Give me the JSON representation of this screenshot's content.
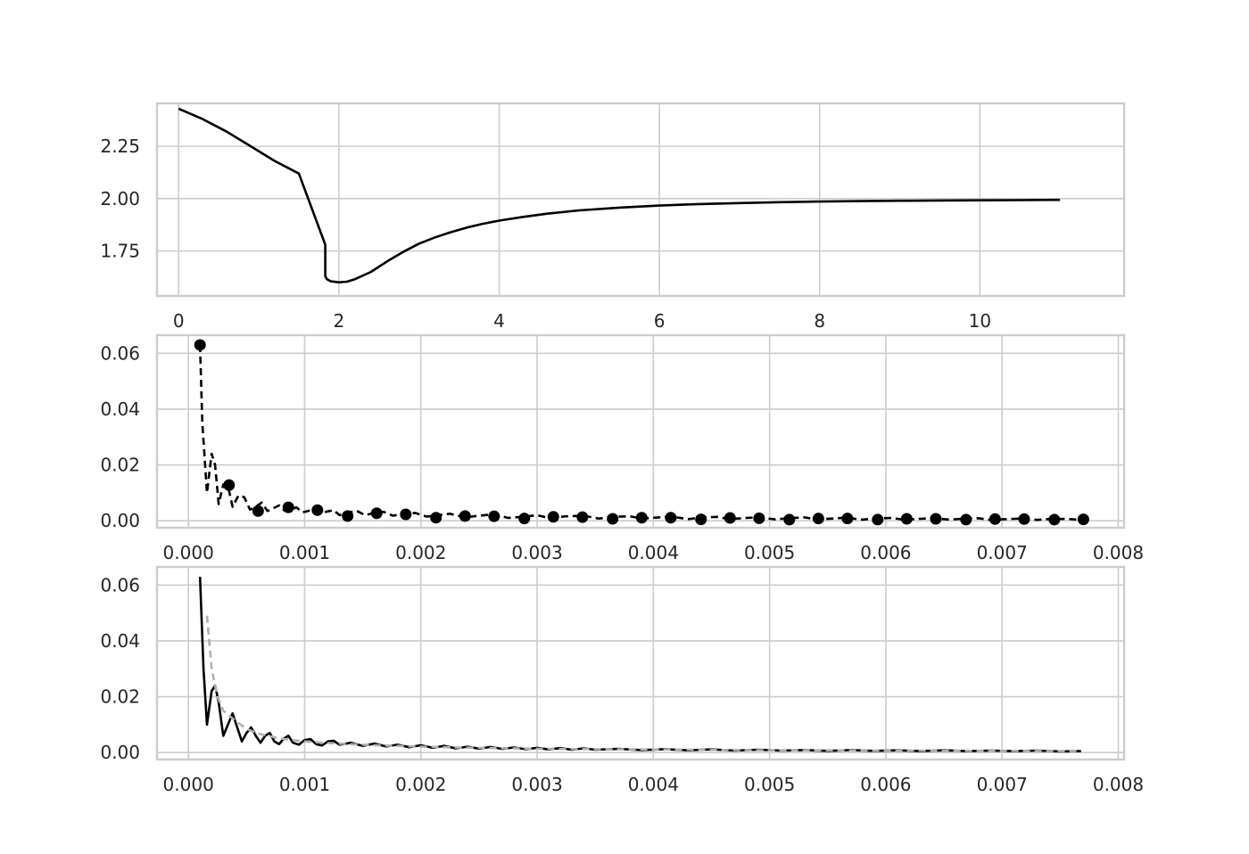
{
  "chart_data": [
    {
      "type": "line",
      "title": "",
      "xlabel": "",
      "ylabel": "",
      "xlim": [
        -0.27,
        11.8
      ],
      "ylim": [
        1.535,
        2.455
      ],
      "xticks": [
        0,
        2,
        4,
        6,
        8,
        10
      ],
      "xtick_labels": [
        "0",
        "2",
        "4",
        "6",
        "8",
        "10"
      ],
      "yticks": [
        1.75,
        2.0,
        2.25
      ],
      "ytick_labels": [
        "1.75",
        "2.00",
        "2.25"
      ],
      "grid": true,
      "series": [
        {
          "style": "solid",
          "color": "#000000",
          "x": [
            0.0,
            0.3,
            0.6,
            0.9,
            1.2,
            1.5,
            1.83,
            1.83,
            1.85,
            1.9,
            2.0,
            2.1,
            2.2,
            2.4,
            2.6,
            2.8,
            3.0,
            3.2,
            3.4,
            3.6,
            3.8,
            4.0,
            4.3,
            4.6,
            5.0,
            5.5,
            6.0,
            6.5,
            7.0,
            7.5,
            8.0,
            8.5,
            9.0,
            9.5,
            10.0,
            10.5,
            11.0
          ],
          "y": [
            2.43,
            2.38,
            2.32,
            2.25,
            2.18,
            2.12,
            1.78,
            1.63,
            1.615,
            1.605,
            1.6,
            1.603,
            1.615,
            1.65,
            1.7,
            1.745,
            1.785,
            1.815,
            1.84,
            1.862,
            1.88,
            1.895,
            1.913,
            1.928,
            1.944,
            1.957,
            1.967,
            1.974,
            1.979,
            1.983,
            1.986,
            1.988,
            1.99,
            1.991,
            1.992,
            1.993,
            1.994
          ]
        }
      ]
    },
    {
      "type": "line",
      "title": "",
      "xlabel": "",
      "ylabel": "",
      "xlim": [
        -0.00027,
        0.00805
      ],
      "ylim": [
        -0.0025,
        0.0665
      ],
      "xticks": [
        0.0,
        0.001,
        0.002,
        0.003,
        0.004,
        0.005,
        0.006,
        0.007,
        0.008
      ],
      "xtick_labels": [
        "0.000",
        "0.001",
        "0.002",
        "0.003",
        "0.004",
        "0.005",
        "0.006",
        "0.007",
        "0.008"
      ],
      "yticks": [
        0.0,
        0.02,
        0.04,
        0.06
      ],
      "ytick_labels": [
        "0.00",
        "0.02",
        "0.04",
        "0.06"
      ],
      "grid": true,
      "series": [
        {
          "style": "dashed",
          "color": "#000000",
          "x": [
            0.0001,
            0.00012,
            0.00016,
            0.0002,
            0.00023,
            0.00026,
            0.0003,
            0.00034,
            0.00038,
            0.00043,
            0.00048,
            0.00053,
            0.00058,
            0.00063,
            0.00068,
            0.00073,
            0.00078,
            0.00083,
            0.00088,
            0.00093,
            0.00098,
            0.00103,
            0.00108,
            0.00113,
            0.00118,
            0.00125,
            0.0013,
            0.00138,
            0.00145,
            0.00152,
            0.0016,
            0.00168,
            0.00176,
            0.00186,
            0.00195,
            0.00205,
            0.00215,
            0.00225,
            0.00238,
            0.0025,
            0.00263,
            0.00275,
            0.0029,
            0.003,
            0.0031,
            0.00325,
            0.0034,
            0.00353,
            0.00365,
            0.0038,
            0.0039,
            0.00405,
            0.00415,
            0.0043,
            0.0044,
            0.00455,
            0.00465,
            0.0048,
            0.0049,
            0.00505,
            0.00515,
            0.0053,
            0.0054,
            0.00555,
            0.00565,
            0.0058,
            0.0059,
            0.00605,
            0.00615,
            0.0063,
            0.0064,
            0.00655,
            0.00665,
            0.0068,
            0.0069,
            0.00705,
            0.00715,
            0.0073,
            0.0074,
            0.00755,
            0.00768
          ],
          "y": [
            0.063,
            0.035,
            0.01,
            0.024,
            0.02,
            0.006,
            0.013,
            0.0125,
            0.005,
            0.009,
            0.0085,
            0.004,
            0.005,
            0.0065,
            0.0035,
            0.0045,
            0.0055,
            0.0035,
            0.004,
            0.0048,
            0.003,
            0.0035,
            0.0042,
            0.003,
            0.0032,
            0.0038,
            0.002,
            0.003,
            0.0035,
            0.002,
            0.0028,
            0.0032,
            0.0018,
            0.0025,
            0.0028,
            0.0015,
            0.002,
            0.0025,
            0.0012,
            0.0018,
            0.0023,
            0.001,
            0.0015,
            0.002,
            0.001,
            0.0016,
            0.0018,
            0.0008,
            0.0014,
            0.0016,
            0.0008,
            0.0012,
            0.0015,
            0.0006,
            0.0011,
            0.0014,
            0.0006,
            0.001,
            0.0012,
            0.0005,
            0.0009,
            0.0012,
            0.0005,
            0.0008,
            0.0011,
            0.0004,
            0.0008,
            0.001,
            0.0004,
            0.0007,
            0.0009,
            0.0004,
            0.0007,
            0.0009,
            0.0003,
            0.0006,
            0.0008,
            0.0003,
            0.0006,
            0.0007,
            0.0003
          ]
        },
        {
          "style": "markers",
          "color": "#000000",
          "x": [
            0.0001,
            0.00035,
            0.0006,
            0.00086,
            0.00111,
            0.00137,
            0.00162,
            0.00187,
            0.00213,
            0.00238,
            0.00263,
            0.00289,
            0.00314,
            0.00339,
            0.00365,
            0.0039,
            0.00415,
            0.00441,
            0.00466,
            0.00491,
            0.00517,
            0.00542,
            0.00567,
            0.00593,
            0.00618,
            0.00643,
            0.00669,
            0.00694,
            0.00719,
            0.00745,
            0.0077
          ],
          "y": [
            0.063,
            0.0128,
            0.0035,
            0.0048,
            0.0038,
            0.0017,
            0.0027,
            0.0023,
            0.0011,
            0.0017,
            0.0016,
            0.0008,
            0.0014,
            0.0013,
            0.0007,
            0.0011,
            0.0011,
            0.0005,
            0.001,
            0.0009,
            0.0004,
            0.0008,
            0.0008,
            0.0004,
            0.0007,
            0.0007,
            0.0004,
            0.0006,
            0.0006,
            0.0004,
            0.0005
          ]
        }
      ]
    },
    {
      "type": "line",
      "title": "",
      "xlabel": "",
      "ylabel": "",
      "xlim": [
        -0.00027,
        0.00805
      ],
      "ylim": [
        -0.0025,
        0.0665
      ],
      "xticks": [
        0.0,
        0.001,
        0.002,
        0.003,
        0.004,
        0.005,
        0.006,
        0.007,
        0.008
      ],
      "xtick_labels": [
        "0.000",
        "0.001",
        "0.002",
        "0.003",
        "0.004",
        "0.005",
        "0.006",
        "0.007",
        "0.008"
      ],
      "yticks": [
        0.0,
        0.02,
        0.04,
        0.06
      ],
      "ytick_labels": [
        "0.00",
        "0.02",
        "0.04",
        "0.06"
      ],
      "grid": true,
      "series": [
        {
          "style": "solid",
          "color": "#000000",
          "x": [
            0.0001,
            0.00013,
            0.00016,
            0.0002,
            0.00023,
            0.00026,
            0.0003,
            0.00034,
            0.00038,
            0.00042,
            0.00046,
            0.0005,
            0.00054,
            0.00058,
            0.00062,
            0.00066,
            0.0007,
            0.00074,
            0.00078,
            0.00082,
            0.00086,
            0.0009,
            0.00095,
            0.001,
            0.00105,
            0.0011,
            0.00115,
            0.0012,
            0.00125,
            0.0013,
            0.0014,
            0.0015,
            0.0016,
            0.0017,
            0.0018,
            0.0019,
            0.002,
            0.0021,
            0.0022,
            0.0023,
            0.0024,
            0.0025,
            0.0026,
            0.0027,
            0.0028,
            0.0029,
            0.003,
            0.0031,
            0.0032,
            0.0033,
            0.0034,
            0.0035,
            0.0037,
            0.0039,
            0.0041,
            0.0043,
            0.0045,
            0.0047,
            0.0049,
            0.0051,
            0.0053,
            0.0055,
            0.0057,
            0.0059,
            0.0061,
            0.0063,
            0.0065,
            0.0067,
            0.0069,
            0.0071,
            0.0073,
            0.0075,
            0.00768
          ],
          "y": [
            0.063,
            0.03,
            0.01,
            0.022,
            0.024,
            0.018,
            0.006,
            0.01,
            0.014,
            0.009,
            0.004,
            0.007,
            0.009,
            0.006,
            0.0035,
            0.006,
            0.007,
            0.004,
            0.003,
            0.005,
            0.006,
            0.0035,
            0.0028,
            0.0045,
            0.0048,
            0.003,
            0.0025,
            0.004,
            0.0042,
            0.0028,
            0.0035,
            0.0024,
            0.0032,
            0.0022,
            0.0028,
            0.0019,
            0.0026,
            0.0017,
            0.0024,
            0.0015,
            0.0021,
            0.0014,
            0.002,
            0.0013,
            0.0018,
            0.0012,
            0.0017,
            0.0011,
            0.0016,
            0.001,
            0.0015,
            0.001,
            0.0013,
            0.0009,
            0.0012,
            0.0008,
            0.0011,
            0.0007,
            0.001,
            0.0007,
            0.0009,
            0.0006,
            0.0009,
            0.0006,
            0.0008,
            0.0005,
            0.0008,
            0.0005,
            0.0007,
            0.0005,
            0.0007,
            0.0004,
            0.0005
          ]
        },
        {
          "style": "dashed",
          "color": "#b0b0b0",
          "x": [
            0.00016,
            0.0002,
            0.00025,
            0.0003,
            0.0004,
            0.0005,
            0.0006,
            0.0007,
            0.0008,
            0.0009,
            0.001,
            0.0012,
            0.0014,
            0.0016,
            0.0018,
            0.002,
            0.0022,
            0.0025,
            0.0028,
            0.0031,
            0.0035,
            0.0039,
            0.0043,
            0.0047,
            0.0051,
            0.0055,
            0.0059,
            0.0063,
            0.0067,
            0.0071,
            0.0075,
            0.00768
          ],
          "y": [
            0.049,
            0.03,
            0.02,
            0.015,
            0.0115,
            0.0085,
            0.0068,
            0.0058,
            0.005,
            0.0044,
            0.004,
            0.0034,
            0.003,
            0.0026,
            0.0024,
            0.0021,
            0.0019,
            0.0017,
            0.0015,
            0.0013,
            0.0012,
            0.0011,
            0.001,
            0.0009,
            0.0008,
            0.0008,
            0.0007,
            0.0007,
            0.0006,
            0.0006,
            0.0005,
            0.0005
          ]
        }
      ]
    }
  ]
}
